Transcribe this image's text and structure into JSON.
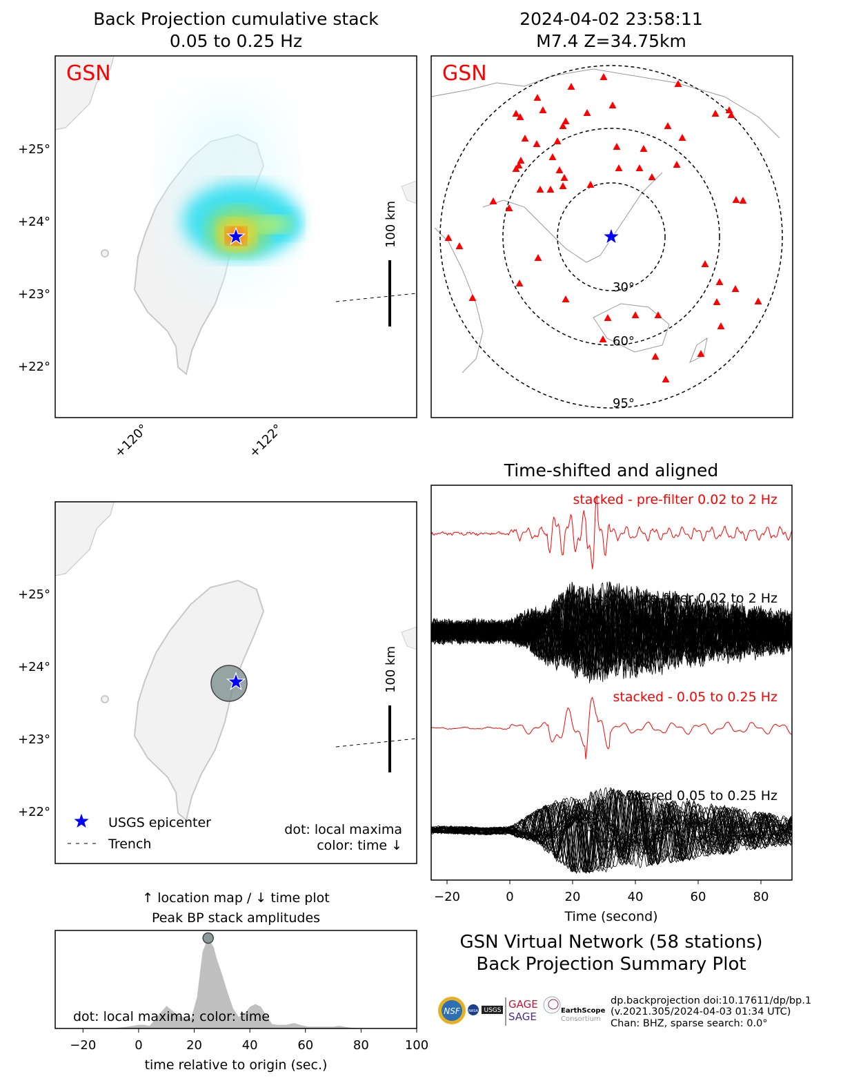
{
  "bp_map": {
    "title_line1": "Back Projection cumulative stack",
    "title_line2": "0.05 to 0.25 Hz",
    "network_label": "GSN",
    "lat_ticks": [
      "+25°",
      "+24°",
      "+23°",
      "+22°"
    ],
    "lon_ticks": [
      "+120°",
      "+122°"
    ],
    "scale_label": "100 km"
  },
  "station_map": {
    "title_line1": "2024-04-02 23:58:11",
    "title_line2": "M7.4 Z=34.75km",
    "network_label": "GSN",
    "distance_rings": [
      "30°",
      "60°",
      "95°"
    ],
    "station_count": 58
  },
  "location_map": {
    "lat_ticks": [
      "+25°",
      "+24°",
      "+23°",
      "+22°"
    ],
    "scale_label": "100 km",
    "legend": {
      "epicenter": "USGS epicenter",
      "trench": "Trench"
    },
    "note_line1": "dot: local maxima",
    "note_line2": "color: time ↓"
  },
  "waveforms": {
    "title": "Time-shifted and aligned",
    "xlabel": "Time (second)",
    "x_ticks": [
      "−20",
      "0",
      "20",
      "40",
      "60",
      "80"
    ],
    "xlim": [
      -25,
      90
    ],
    "labels": [
      "stacked - pre-filter 0.02 to 2 Hz",
      "pre-filter 0.02 to 2 Hz",
      "stacked - 0.05 to 0.25 Hz",
      "filtered 0.05 to 0.25 Hz"
    ],
    "colors": {
      "stacked": "#ff0000",
      "traces": "#000000"
    }
  },
  "chart_data": {
    "type": "area",
    "title": "↑ location map / ↓ time plot",
    "subtitle": "Peak BP stack amplitudes",
    "xlabel": "time relative to origin (sec.)",
    "x_ticks": [
      "−20",
      "0",
      "20",
      "40",
      "60",
      "80",
      "100"
    ],
    "xlim": [
      -30,
      100
    ],
    "ylim": [
      0,
      1.08
    ],
    "annotation": "dot: local maxima; color: time",
    "x": [
      -30,
      -10,
      -4,
      0,
      2,
      4,
      7,
      10,
      12,
      14,
      17,
      19,
      21,
      23,
      25,
      27,
      28,
      30,
      32,
      34,
      36,
      38,
      40,
      42,
      44,
      46,
      48,
      50,
      53,
      56,
      58,
      61,
      66,
      70,
      72,
      76,
      80,
      100
    ],
    "values": [
      0,
      0,
      0.02,
      0.04,
      0.04,
      0.03,
      0.14,
      0.25,
      0.2,
      0.15,
      0.11,
      0.12,
      0.35,
      0.85,
      1.0,
      0.9,
      0.78,
      0.6,
      0.4,
      0.22,
      0.13,
      0.16,
      0.24,
      0.27,
      0.24,
      0.14,
      0.05,
      0.04,
      0.04,
      0.06,
      0.04,
      0.02,
      0.02,
      0.02,
      0.03,
      0.01,
      0,
      0
    ],
    "local_maxima": [
      {
        "x": 25,
        "y": 1.0
      }
    ],
    "fill_color": "#c0c0c0",
    "dot_color": "#8a9a9a"
  },
  "summary": {
    "line1": "GSN Virtual Network (58 stations)",
    "line2": "Back Projection Summary Plot",
    "info_line1": "dp.backprojection doi:10.17611/dp/bp.1",
    "info_line2": "(v.2021.305/2024-04-03 01:34 UTC)",
    "info_line3": "Chan: BHZ, sparse search: 0.0°",
    "logos": [
      "NSF",
      "NASA",
      "USGS",
      "GAGE",
      "SAGE",
      "EarthScope Consortium"
    ],
    "logo_gage_sage_color": "#c8102e"
  }
}
